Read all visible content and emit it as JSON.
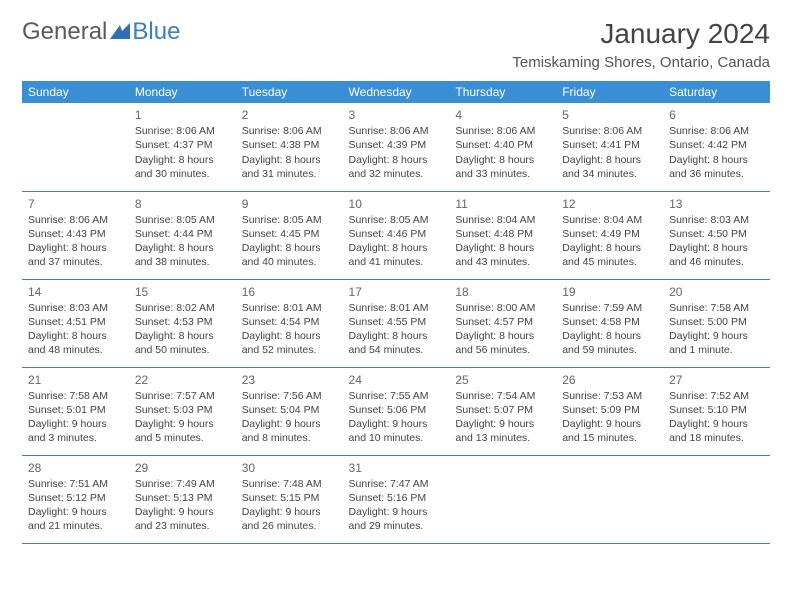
{
  "brand": {
    "part1": "General",
    "part2": "Blue"
  },
  "title": "January 2024",
  "location": "Temiskaming Shores, Ontario, Canada",
  "colors": {
    "header_bg": "#3a8fd4",
    "header_fg": "#ffffff",
    "row_border": "#3a7fc4",
    "text": "#444444",
    "brand_gray": "#5a5a5a",
    "brand_blue": "#3a7fc4"
  },
  "day_headers": [
    "Sunday",
    "Monday",
    "Tuesday",
    "Wednesday",
    "Thursday",
    "Friday",
    "Saturday"
  ],
  "weeks": [
    [
      null,
      {
        "n": "1",
        "sr": "Sunrise: 8:06 AM",
        "ss": "Sunset: 4:37 PM",
        "dl1": "Daylight: 8 hours",
        "dl2": "and 30 minutes."
      },
      {
        "n": "2",
        "sr": "Sunrise: 8:06 AM",
        "ss": "Sunset: 4:38 PM",
        "dl1": "Daylight: 8 hours",
        "dl2": "and 31 minutes."
      },
      {
        "n": "3",
        "sr": "Sunrise: 8:06 AM",
        "ss": "Sunset: 4:39 PM",
        "dl1": "Daylight: 8 hours",
        "dl2": "and 32 minutes."
      },
      {
        "n": "4",
        "sr": "Sunrise: 8:06 AM",
        "ss": "Sunset: 4:40 PM",
        "dl1": "Daylight: 8 hours",
        "dl2": "and 33 minutes."
      },
      {
        "n": "5",
        "sr": "Sunrise: 8:06 AM",
        "ss": "Sunset: 4:41 PM",
        "dl1": "Daylight: 8 hours",
        "dl2": "and 34 minutes."
      },
      {
        "n": "6",
        "sr": "Sunrise: 8:06 AM",
        "ss": "Sunset: 4:42 PM",
        "dl1": "Daylight: 8 hours",
        "dl2": "and 36 minutes."
      }
    ],
    [
      {
        "n": "7",
        "sr": "Sunrise: 8:06 AM",
        "ss": "Sunset: 4:43 PM",
        "dl1": "Daylight: 8 hours",
        "dl2": "and 37 minutes."
      },
      {
        "n": "8",
        "sr": "Sunrise: 8:05 AM",
        "ss": "Sunset: 4:44 PM",
        "dl1": "Daylight: 8 hours",
        "dl2": "and 38 minutes."
      },
      {
        "n": "9",
        "sr": "Sunrise: 8:05 AM",
        "ss": "Sunset: 4:45 PM",
        "dl1": "Daylight: 8 hours",
        "dl2": "and 40 minutes."
      },
      {
        "n": "10",
        "sr": "Sunrise: 8:05 AM",
        "ss": "Sunset: 4:46 PM",
        "dl1": "Daylight: 8 hours",
        "dl2": "and 41 minutes."
      },
      {
        "n": "11",
        "sr": "Sunrise: 8:04 AM",
        "ss": "Sunset: 4:48 PM",
        "dl1": "Daylight: 8 hours",
        "dl2": "and 43 minutes."
      },
      {
        "n": "12",
        "sr": "Sunrise: 8:04 AM",
        "ss": "Sunset: 4:49 PM",
        "dl1": "Daylight: 8 hours",
        "dl2": "and 45 minutes."
      },
      {
        "n": "13",
        "sr": "Sunrise: 8:03 AM",
        "ss": "Sunset: 4:50 PM",
        "dl1": "Daylight: 8 hours",
        "dl2": "and 46 minutes."
      }
    ],
    [
      {
        "n": "14",
        "sr": "Sunrise: 8:03 AM",
        "ss": "Sunset: 4:51 PM",
        "dl1": "Daylight: 8 hours",
        "dl2": "and 48 minutes."
      },
      {
        "n": "15",
        "sr": "Sunrise: 8:02 AM",
        "ss": "Sunset: 4:53 PM",
        "dl1": "Daylight: 8 hours",
        "dl2": "and 50 minutes."
      },
      {
        "n": "16",
        "sr": "Sunrise: 8:01 AM",
        "ss": "Sunset: 4:54 PM",
        "dl1": "Daylight: 8 hours",
        "dl2": "and 52 minutes."
      },
      {
        "n": "17",
        "sr": "Sunrise: 8:01 AM",
        "ss": "Sunset: 4:55 PM",
        "dl1": "Daylight: 8 hours",
        "dl2": "and 54 minutes."
      },
      {
        "n": "18",
        "sr": "Sunrise: 8:00 AM",
        "ss": "Sunset: 4:57 PM",
        "dl1": "Daylight: 8 hours",
        "dl2": "and 56 minutes."
      },
      {
        "n": "19",
        "sr": "Sunrise: 7:59 AM",
        "ss": "Sunset: 4:58 PM",
        "dl1": "Daylight: 8 hours",
        "dl2": "and 59 minutes."
      },
      {
        "n": "20",
        "sr": "Sunrise: 7:58 AM",
        "ss": "Sunset: 5:00 PM",
        "dl1": "Daylight: 9 hours",
        "dl2": "and 1 minute."
      }
    ],
    [
      {
        "n": "21",
        "sr": "Sunrise: 7:58 AM",
        "ss": "Sunset: 5:01 PM",
        "dl1": "Daylight: 9 hours",
        "dl2": "and 3 minutes."
      },
      {
        "n": "22",
        "sr": "Sunrise: 7:57 AM",
        "ss": "Sunset: 5:03 PM",
        "dl1": "Daylight: 9 hours",
        "dl2": "and 5 minutes."
      },
      {
        "n": "23",
        "sr": "Sunrise: 7:56 AM",
        "ss": "Sunset: 5:04 PM",
        "dl1": "Daylight: 9 hours",
        "dl2": "and 8 minutes."
      },
      {
        "n": "24",
        "sr": "Sunrise: 7:55 AM",
        "ss": "Sunset: 5:06 PM",
        "dl1": "Daylight: 9 hours",
        "dl2": "and 10 minutes."
      },
      {
        "n": "25",
        "sr": "Sunrise: 7:54 AM",
        "ss": "Sunset: 5:07 PM",
        "dl1": "Daylight: 9 hours",
        "dl2": "and 13 minutes."
      },
      {
        "n": "26",
        "sr": "Sunrise: 7:53 AM",
        "ss": "Sunset: 5:09 PM",
        "dl1": "Daylight: 9 hours",
        "dl2": "and 15 minutes."
      },
      {
        "n": "27",
        "sr": "Sunrise: 7:52 AM",
        "ss": "Sunset: 5:10 PM",
        "dl1": "Daylight: 9 hours",
        "dl2": "and 18 minutes."
      }
    ],
    [
      {
        "n": "28",
        "sr": "Sunrise: 7:51 AM",
        "ss": "Sunset: 5:12 PM",
        "dl1": "Daylight: 9 hours",
        "dl2": "and 21 minutes."
      },
      {
        "n": "29",
        "sr": "Sunrise: 7:49 AM",
        "ss": "Sunset: 5:13 PM",
        "dl1": "Daylight: 9 hours",
        "dl2": "and 23 minutes."
      },
      {
        "n": "30",
        "sr": "Sunrise: 7:48 AM",
        "ss": "Sunset: 5:15 PM",
        "dl1": "Daylight: 9 hours",
        "dl2": "and 26 minutes."
      },
      {
        "n": "31",
        "sr": "Sunrise: 7:47 AM",
        "ss": "Sunset: 5:16 PM",
        "dl1": "Daylight: 9 hours",
        "dl2": "and 29 minutes."
      },
      null,
      null,
      null
    ]
  ]
}
